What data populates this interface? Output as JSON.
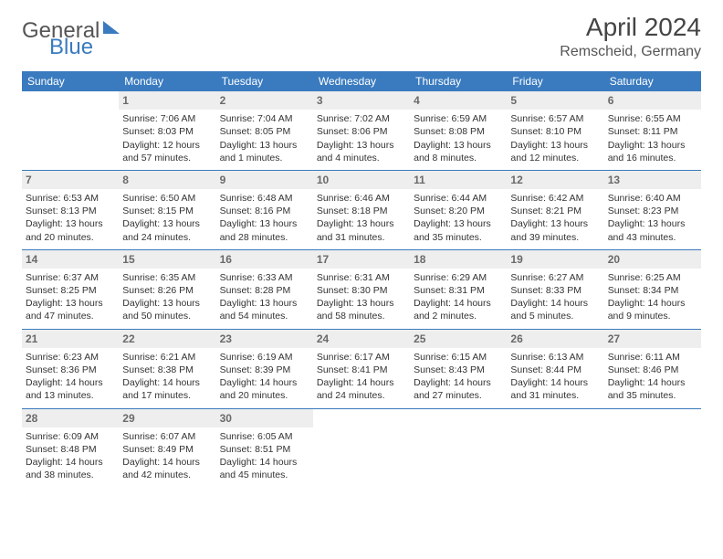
{
  "brand": {
    "part1": "General",
    "part2": "Blue"
  },
  "title": "April 2024",
  "location": "Remscheid, Germany",
  "colors": {
    "header_bg": "#3a7bbf",
    "header_text": "#ffffff",
    "daynum_bg": "#eeeeee",
    "daynum_text": "#6a6a6a",
    "body_text": "#333333",
    "rule": "#3a7bbf"
  },
  "weekdays": [
    "Sunday",
    "Monday",
    "Tuesday",
    "Wednesday",
    "Thursday",
    "Friday",
    "Saturday"
  ],
  "weeks": [
    [
      {
        "n": "",
        "sr": "",
        "ss": "",
        "dl": ""
      },
      {
        "n": "1",
        "sr": "Sunrise: 7:06 AM",
        "ss": "Sunset: 8:03 PM",
        "dl": "Daylight: 12 hours and 57 minutes."
      },
      {
        "n": "2",
        "sr": "Sunrise: 7:04 AM",
        "ss": "Sunset: 8:05 PM",
        "dl": "Daylight: 13 hours and 1 minutes."
      },
      {
        "n": "3",
        "sr": "Sunrise: 7:02 AM",
        "ss": "Sunset: 8:06 PM",
        "dl": "Daylight: 13 hours and 4 minutes."
      },
      {
        "n": "4",
        "sr": "Sunrise: 6:59 AM",
        "ss": "Sunset: 8:08 PM",
        "dl": "Daylight: 13 hours and 8 minutes."
      },
      {
        "n": "5",
        "sr": "Sunrise: 6:57 AM",
        "ss": "Sunset: 8:10 PM",
        "dl": "Daylight: 13 hours and 12 minutes."
      },
      {
        "n": "6",
        "sr": "Sunrise: 6:55 AM",
        "ss": "Sunset: 8:11 PM",
        "dl": "Daylight: 13 hours and 16 minutes."
      }
    ],
    [
      {
        "n": "7",
        "sr": "Sunrise: 6:53 AM",
        "ss": "Sunset: 8:13 PM",
        "dl": "Daylight: 13 hours and 20 minutes."
      },
      {
        "n": "8",
        "sr": "Sunrise: 6:50 AM",
        "ss": "Sunset: 8:15 PM",
        "dl": "Daylight: 13 hours and 24 minutes."
      },
      {
        "n": "9",
        "sr": "Sunrise: 6:48 AM",
        "ss": "Sunset: 8:16 PM",
        "dl": "Daylight: 13 hours and 28 minutes."
      },
      {
        "n": "10",
        "sr": "Sunrise: 6:46 AM",
        "ss": "Sunset: 8:18 PM",
        "dl": "Daylight: 13 hours and 31 minutes."
      },
      {
        "n": "11",
        "sr": "Sunrise: 6:44 AM",
        "ss": "Sunset: 8:20 PM",
        "dl": "Daylight: 13 hours and 35 minutes."
      },
      {
        "n": "12",
        "sr": "Sunrise: 6:42 AM",
        "ss": "Sunset: 8:21 PM",
        "dl": "Daylight: 13 hours and 39 minutes."
      },
      {
        "n": "13",
        "sr": "Sunrise: 6:40 AM",
        "ss": "Sunset: 8:23 PM",
        "dl": "Daylight: 13 hours and 43 minutes."
      }
    ],
    [
      {
        "n": "14",
        "sr": "Sunrise: 6:37 AM",
        "ss": "Sunset: 8:25 PM",
        "dl": "Daylight: 13 hours and 47 minutes."
      },
      {
        "n": "15",
        "sr": "Sunrise: 6:35 AM",
        "ss": "Sunset: 8:26 PM",
        "dl": "Daylight: 13 hours and 50 minutes."
      },
      {
        "n": "16",
        "sr": "Sunrise: 6:33 AM",
        "ss": "Sunset: 8:28 PM",
        "dl": "Daylight: 13 hours and 54 minutes."
      },
      {
        "n": "17",
        "sr": "Sunrise: 6:31 AM",
        "ss": "Sunset: 8:30 PM",
        "dl": "Daylight: 13 hours and 58 minutes."
      },
      {
        "n": "18",
        "sr": "Sunrise: 6:29 AM",
        "ss": "Sunset: 8:31 PM",
        "dl": "Daylight: 14 hours and 2 minutes."
      },
      {
        "n": "19",
        "sr": "Sunrise: 6:27 AM",
        "ss": "Sunset: 8:33 PM",
        "dl": "Daylight: 14 hours and 5 minutes."
      },
      {
        "n": "20",
        "sr": "Sunrise: 6:25 AM",
        "ss": "Sunset: 8:34 PM",
        "dl": "Daylight: 14 hours and 9 minutes."
      }
    ],
    [
      {
        "n": "21",
        "sr": "Sunrise: 6:23 AM",
        "ss": "Sunset: 8:36 PM",
        "dl": "Daylight: 14 hours and 13 minutes."
      },
      {
        "n": "22",
        "sr": "Sunrise: 6:21 AM",
        "ss": "Sunset: 8:38 PM",
        "dl": "Daylight: 14 hours and 17 minutes."
      },
      {
        "n": "23",
        "sr": "Sunrise: 6:19 AM",
        "ss": "Sunset: 8:39 PM",
        "dl": "Daylight: 14 hours and 20 minutes."
      },
      {
        "n": "24",
        "sr": "Sunrise: 6:17 AM",
        "ss": "Sunset: 8:41 PM",
        "dl": "Daylight: 14 hours and 24 minutes."
      },
      {
        "n": "25",
        "sr": "Sunrise: 6:15 AM",
        "ss": "Sunset: 8:43 PM",
        "dl": "Daylight: 14 hours and 27 minutes."
      },
      {
        "n": "26",
        "sr": "Sunrise: 6:13 AM",
        "ss": "Sunset: 8:44 PM",
        "dl": "Daylight: 14 hours and 31 minutes."
      },
      {
        "n": "27",
        "sr": "Sunrise: 6:11 AM",
        "ss": "Sunset: 8:46 PM",
        "dl": "Daylight: 14 hours and 35 minutes."
      }
    ],
    [
      {
        "n": "28",
        "sr": "Sunrise: 6:09 AM",
        "ss": "Sunset: 8:48 PM",
        "dl": "Daylight: 14 hours and 38 minutes."
      },
      {
        "n": "29",
        "sr": "Sunrise: 6:07 AM",
        "ss": "Sunset: 8:49 PM",
        "dl": "Daylight: 14 hours and 42 minutes."
      },
      {
        "n": "30",
        "sr": "Sunrise: 6:05 AM",
        "ss": "Sunset: 8:51 PM",
        "dl": "Daylight: 14 hours and 45 minutes."
      },
      {
        "n": "",
        "sr": "",
        "ss": "",
        "dl": ""
      },
      {
        "n": "",
        "sr": "",
        "ss": "",
        "dl": ""
      },
      {
        "n": "",
        "sr": "",
        "ss": "",
        "dl": ""
      },
      {
        "n": "",
        "sr": "",
        "ss": "",
        "dl": ""
      }
    ]
  ]
}
